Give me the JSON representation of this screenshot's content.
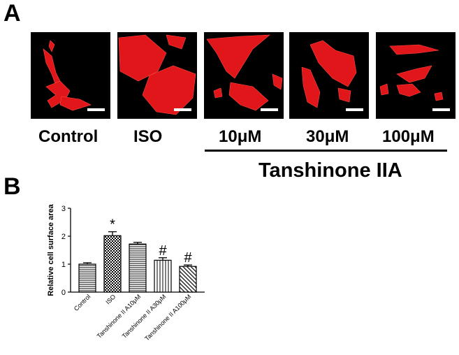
{
  "figure": {
    "panel_a_label": "A",
    "panel_b_label": "B",
    "conditions": [
      "Control",
      "ISO",
      "10μM",
      "30μM",
      "100μM"
    ],
    "bracket_label": "Tanshinone IIA"
  },
  "colors": {
    "stain": "#e0161a",
    "background": "#000000",
    "bar_edge": "#000000"
  },
  "chart_data": {
    "type": "bar",
    "categories": [
      "Control",
      "ISO",
      "Tanshinone II A10μM",
      "Tanshinone II A30μM",
      "Tanshinone II A100μM"
    ],
    "values": [
      1.0,
      2.02,
      1.72,
      1.14,
      0.92
    ],
    "errors": [
      0.05,
      0.14,
      0.06,
      0.09,
      0.05
    ],
    "annotations": [
      "",
      "*",
      "",
      "#",
      "#"
    ],
    "patterns": [
      "horizontal-lines",
      "checker",
      "horizontal-lines",
      "vertical-lines",
      "diagonal-lines"
    ],
    "ylabel": "Relative cell surface area",
    "ylim": [
      0,
      3
    ],
    "yticks": [
      0,
      1,
      2,
      3
    ]
  }
}
